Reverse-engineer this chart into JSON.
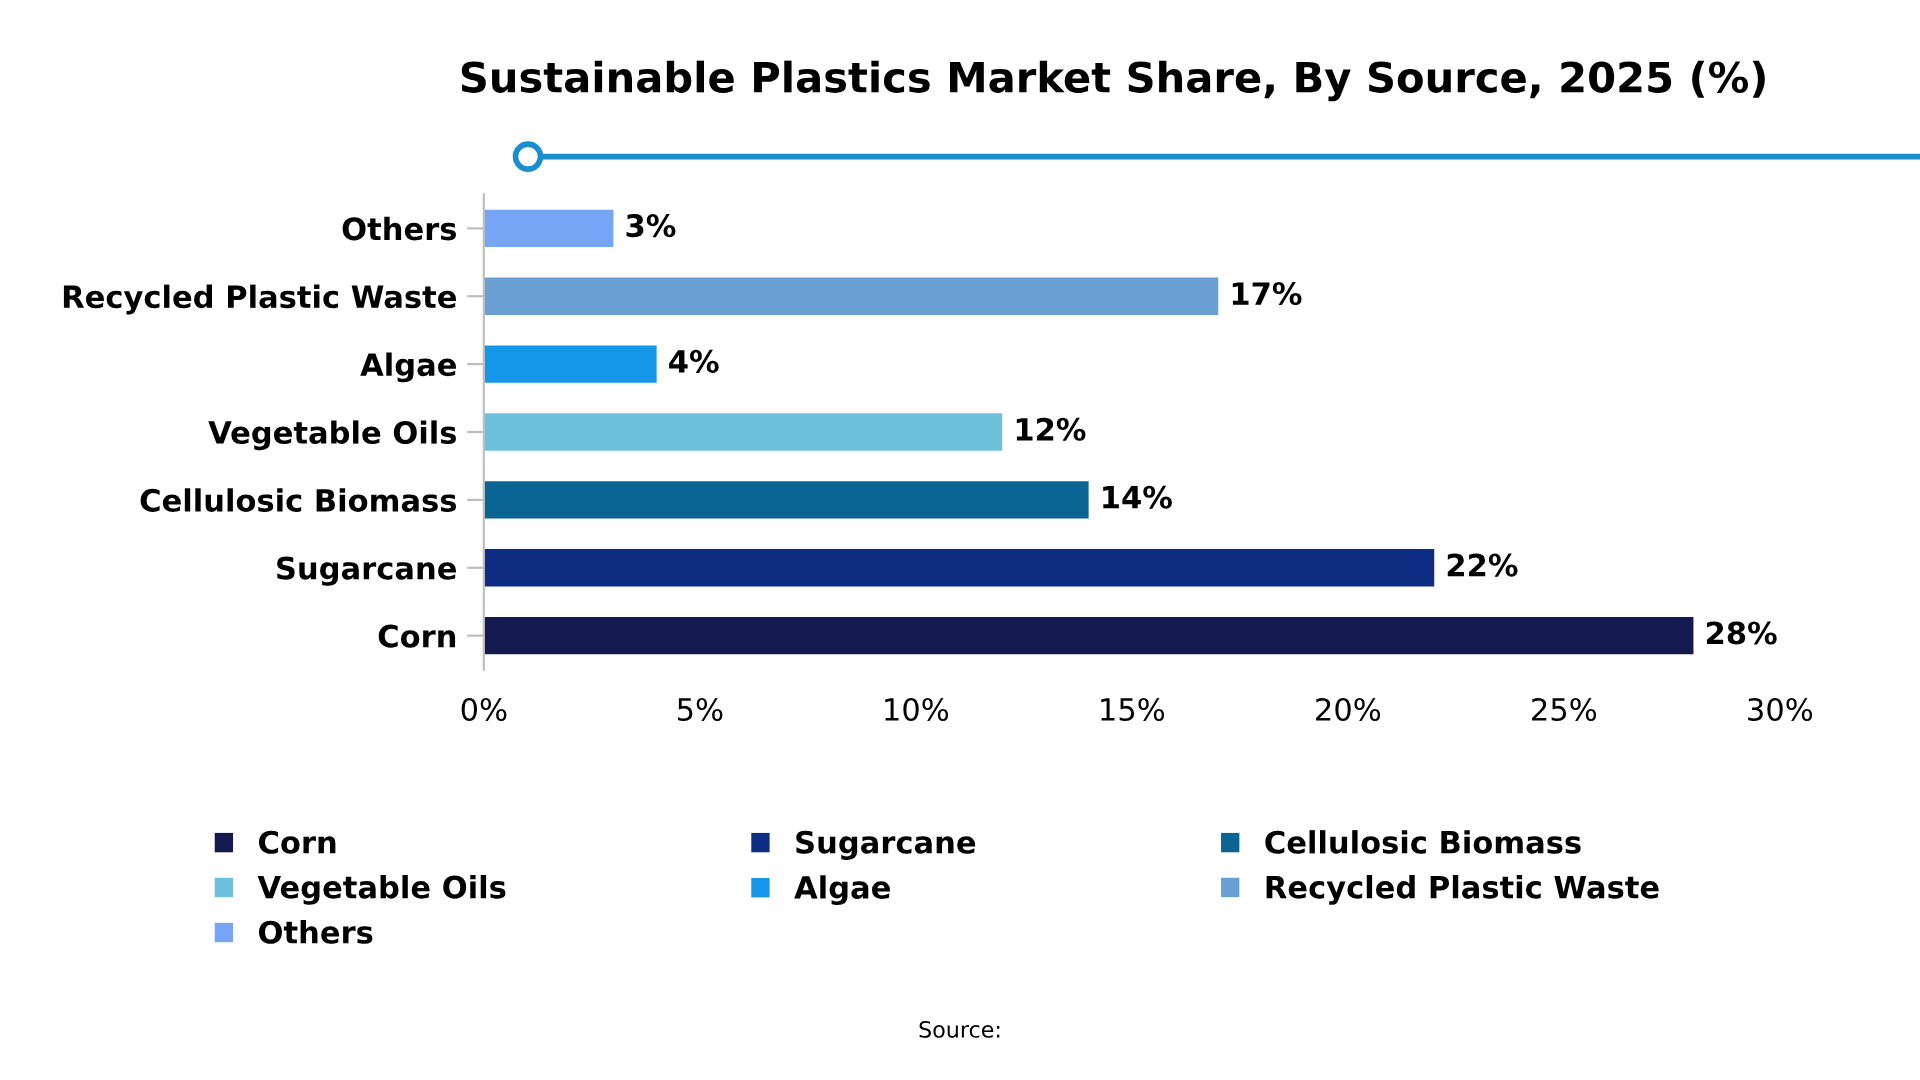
{
  "chart_data": {
    "type": "bar",
    "orientation": "horizontal",
    "title": "Sustainable Plastics Market Share, By Source, 2025 (%)",
    "categories": [
      "Others",
      "Recycled Plastic Waste",
      "Algae",
      "Vegetable Oils",
      "Cellulosic Biomass",
      "Sugarcane",
      "Corn"
    ],
    "series": [
      {
        "name": "Corn",
        "color": "#14194f",
        "values": [
          null,
          null,
          null,
          null,
          null,
          null,
          28
        ],
        "value_labels": [
          null,
          null,
          null,
          null,
          null,
          null,
          "28%"
        ]
      },
      {
        "name": "Sugarcane",
        "color": "#0d2d82",
        "values": [
          null,
          null,
          null,
          null,
          null,
          22,
          null
        ],
        "value_labels": [
          null,
          null,
          null,
          null,
          null,
          "22%",
          null
        ]
      },
      {
        "name": "Cellulosic Biomass",
        "color": "#0a6595",
        "values": [
          null,
          null,
          null,
          null,
          14,
          null,
          null
        ],
        "value_labels": [
          null,
          null,
          null,
          null,
          "14%",
          null,
          null
        ]
      },
      {
        "name": "Vegetable Oils",
        "color": "#6ec1dc",
        "values": [
          null,
          null,
          null,
          12,
          null,
          null,
          null
        ],
        "value_labels": [
          null,
          null,
          null,
          "12%",
          null,
          null,
          null
        ]
      },
      {
        "name": "Algae",
        "color": "#1497e8",
        "values": [
          null,
          null,
          4,
          null,
          null,
          null,
          null
        ],
        "value_labels": [
          null,
          null,
          "4%",
          null,
          null,
          null,
          null
        ]
      },
      {
        "name": "Recycled Plastic Waste",
        "color": "#6a9fd3",
        "values": [
          null,
          17,
          null,
          null,
          null,
          null,
          null
        ],
        "value_labels": [
          null,
          "17%",
          null,
          null,
          null,
          null,
          null
        ]
      },
      {
        "name": "Others",
        "color": "#76a5f5",
        "values": [
          3,
          null,
          null,
          null,
          null,
          null,
          null
        ],
        "value_labels": [
          "3%",
          null,
          null,
          null,
          null,
          null,
          null
        ]
      }
    ],
    "xlim": [
      0,
      30
    ],
    "xticks": [
      {
        "value": 0,
        "label": "0%"
      },
      {
        "value": 5,
        "label": "5%"
      },
      {
        "value": 10,
        "label": "10%"
      },
      {
        "value": 15,
        "label": "15%"
      },
      {
        "value": 20,
        "label": "20%"
      },
      {
        "value": 25,
        "label": "25%"
      },
      {
        "value": 30,
        "label": "30%"
      }
    ],
    "legend": "bottom",
    "annotations": [
      "Source:"
    ]
  }
}
